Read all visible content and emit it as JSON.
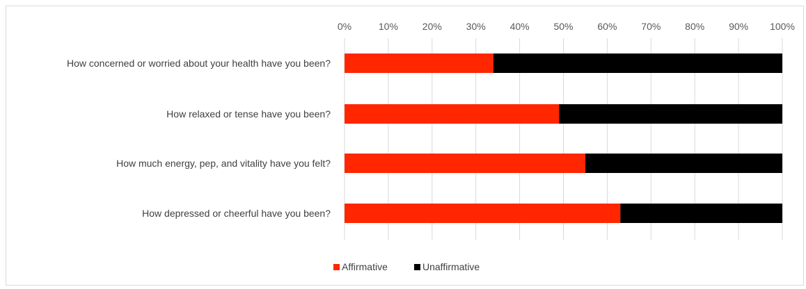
{
  "chart_data": {
    "type": "bar",
    "orientation": "horizontal",
    "stacked": "percent",
    "title": "",
    "xlabel": "",
    "ylabel": "",
    "xlim": [
      0,
      100
    ],
    "x_ticks": [
      "0%",
      "10%",
      "20%",
      "30%",
      "40%",
      "50%",
      "60%",
      "70%",
      "80%",
      "90%",
      "100%"
    ],
    "x_axis_position": "top",
    "grid": true,
    "legend_position": "bottom",
    "categories": [
      "How concerned or worried about your health have you been?",
      "How relaxed or tense have you been?",
      "How much energy, pep, and vitality have you felt?",
      "How depressed or cheerful have you been?"
    ],
    "series": [
      {
        "name": "Affirmative",
        "color": "#ff2600",
        "values": [
          34,
          49,
          55,
          63
        ]
      },
      {
        "name": "Unaffirmative",
        "color": "#000000",
        "values": [
          66,
          51,
          45,
          37
        ]
      }
    ]
  }
}
